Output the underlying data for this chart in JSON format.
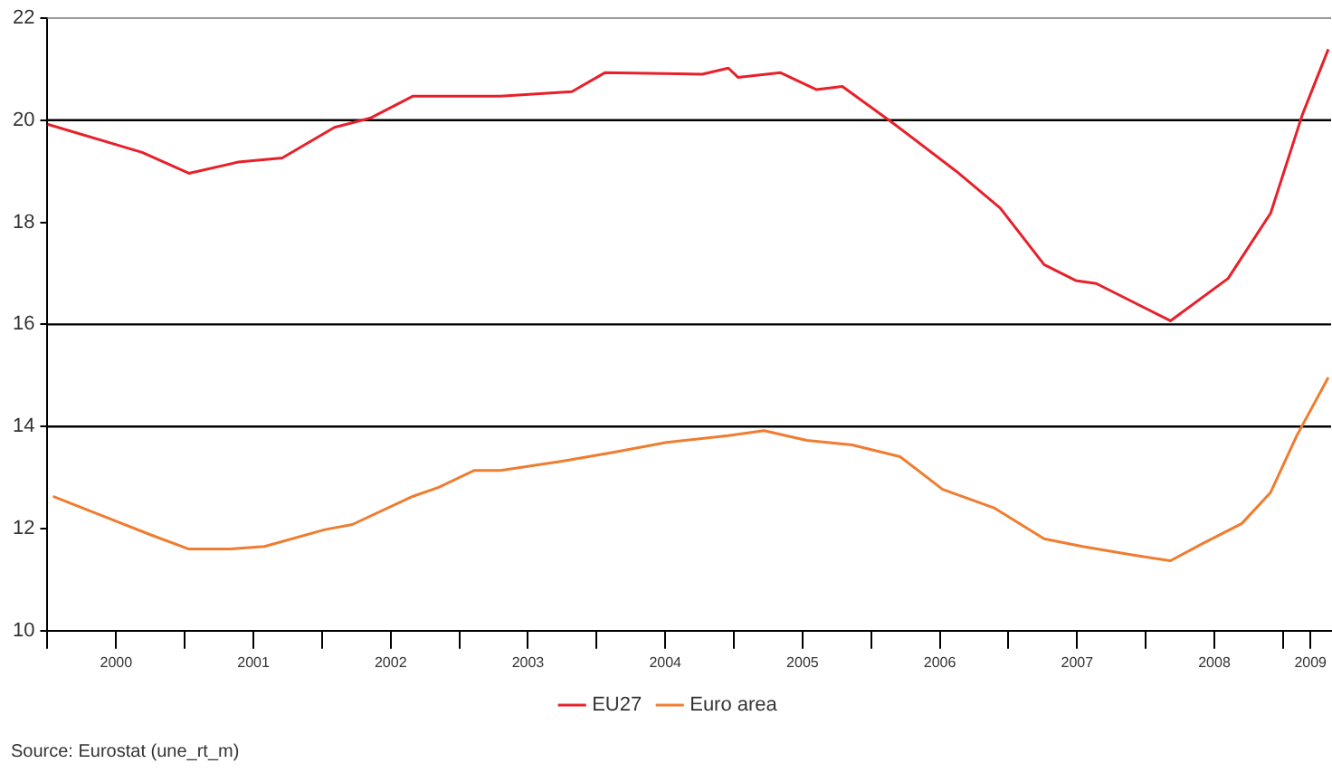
{
  "chart_data": {
    "type": "line",
    "legend": "bottom",
    "grid": false,
    "marker": "none",
    "line_style": "solid",
    "xlim": [
      2000,
      2009.35
    ],
    "ylim": [
      10,
      22
    ],
    "yticks": [
      10,
      12,
      14,
      16,
      18,
      20,
      22
    ],
    "xticks": [
      {
        "value": 2000,
        "label": null
      },
      {
        "value": 2000.5,
        "label": "2000"
      },
      {
        "value": 2001,
        "label": null
      },
      {
        "value": 2001.5,
        "label": "2001"
      },
      {
        "value": 2002,
        "label": null
      },
      {
        "value": 2002.5,
        "label": "2002"
      },
      {
        "value": 2003,
        "label": null
      },
      {
        "value": 2003.5,
        "label": "2003"
      },
      {
        "value": 2004,
        "label": null
      },
      {
        "value": 2004.5,
        "label": "2004"
      },
      {
        "value": 2005,
        "label": null
      },
      {
        "value": 2005.5,
        "label": "2005"
      },
      {
        "value": 2006,
        "label": null
      },
      {
        "value": 2006.5,
        "label": "2006"
      },
      {
        "value": 2007,
        "label": null
      },
      {
        "value": 2007.5,
        "label": "2007"
      },
      {
        "value": 2008,
        "label": null
      },
      {
        "value": 2008.5,
        "label": "2008"
      },
      {
        "value": 2009,
        "label": null
      },
      {
        "value": 2009.2,
        "label": "2009"
      }
    ],
    "ref_lines": [
      {
        "axis": "y",
        "value": 20,
        "color": "#000000"
      },
      {
        "axis": "y",
        "value": 16,
        "color": "#000000"
      },
      {
        "axis": "y",
        "value": 14,
        "color": "#000000"
      }
    ],
    "series": [
      {
        "name": "EU27",
        "color": "#e8202a",
        "x": [
          2000.0,
          2000.69,
          2001.03,
          2001.39,
          2001.71,
          2002.09,
          2002.35,
          2002.66,
          2003.3,
          2003.82,
          2004.06,
          2004.77,
          2004.96,
          2005.03,
          2005.34,
          2005.6,
          2005.79,
          2006.17,
          2006.62,
          2006.94,
          2007.26,
          2007.49,
          2007.64,
          2008.18,
          2008.6,
          2008.91,
          2009.14,
          2009.33
        ],
        "values": [
          19.92,
          19.37,
          18.96,
          19.18,
          19.26,
          19.86,
          20.04,
          20.47,
          20.47,
          20.56,
          20.93,
          20.9,
          21.02,
          20.84,
          20.93,
          20.6,
          20.66,
          19.92,
          19.0,
          18.28,
          17.17,
          16.86,
          16.8,
          16.07,
          16.9,
          18.18,
          20.1,
          21.39
        ]
      },
      {
        "name": "Euro area",
        "color": "#f07c30",
        "x": [
          2000.04,
          2000.43,
          2000.75,
          2001.03,
          2001.33,
          2001.58,
          2002.02,
          2002.22,
          2002.66,
          2002.85,
          2003.11,
          2003.3,
          2003.75,
          2004.13,
          2004.51,
          2004.96,
          2005.22,
          2005.53,
          2005.86,
          2006.21,
          2006.52,
          2006.9,
          2007.26,
          2007.54,
          2007.89,
          2008.18,
          2008.41,
          2008.7,
          2008.91,
          2009.1,
          2009.33
        ],
        "values": [
          12.63,
          12.22,
          11.88,
          11.6,
          11.6,
          11.65,
          11.98,
          12.08,
          12.63,
          12.81,
          13.14,
          13.14,
          13.32,
          13.5,
          13.69,
          13.82,
          13.92,
          13.73,
          13.64,
          13.41,
          12.77,
          12.4,
          11.8,
          11.65,
          11.49,
          11.37,
          11.7,
          12.1,
          12.71,
          13.82,
          14.96
        ]
      }
    ],
    "annotations": [
      "Source: Eurostat (une_rt_m)"
    ]
  }
}
